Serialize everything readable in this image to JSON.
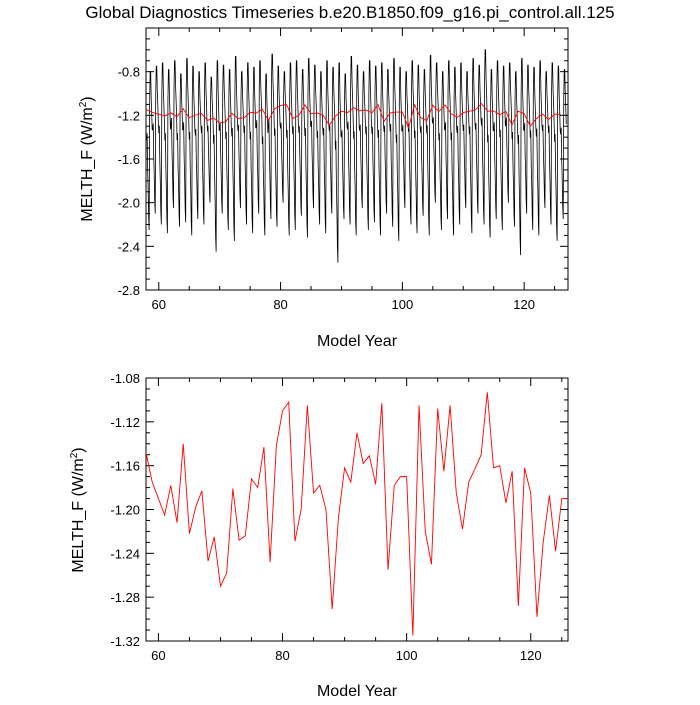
{
  "figure_title": "Global Diagnostics Timeseries b.e20.B1850.f09_g16.pi_control.all.125",
  "chart_data": [
    {
      "type": "line",
      "xlabel": "Model Year",
      "ylabel": "MELTH_F (W/m²)",
      "ylabel_main": "MELTH_F (W/m",
      "ylabel_sup": "2",
      "ylabel_tail": ")",
      "xlim": [
        57.9,
        127.2
      ],
      "ylim": [
        -2.8,
        -0.4
      ],
      "x_tick_labels": [
        "60",
        "80",
        "100",
        "120"
      ],
      "x_tick_values": [
        60,
        80,
        100,
        120
      ],
      "y_tick_labels": [
        "-2.8",
        "-2.4",
        "-2.0",
        "-1.6",
        "-1.2",
        "-0.8"
      ],
      "y_tick_values": [
        -2.8,
        -2.4,
        -2.0,
        -1.6,
        -1.2,
        -0.8
      ],
      "series": [
        {
          "kind": "monthly",
          "color": "#000000",
          "start_year": 58,
          "points_per_year": 12,
          "years": 69,
          "seasonal_cycle_offsets": [
            0.06,
            0.1,
            -0.2,
            -0.45,
            -0.8,
            -0.95,
            0.28,
            0.45,
            0.45,
            0.3,
            0.22,
            0.12
          ],
          "annual_peaks": [
            -0.8,
            -0.75,
            -0.72,
            -0.78,
            -0.7,
            -0.82,
            -0.68,
            -0.75,
            -0.8,
            -0.72,
            -0.85,
            -0.7,
            -0.74,
            -0.78,
            -0.66,
            -0.8,
            -0.72,
            -0.76,
            -0.7,
            -0.82,
            -0.64,
            -0.75,
            -0.8,
            -0.72,
            -0.7,
            -0.78,
            -0.68,
            -0.74,
            -0.8,
            -0.7,
            -0.76,
            -0.72,
            -0.82,
            -0.66,
            -0.74,
            -0.8,
            -0.7,
            -0.75,
            -0.72,
            -0.78,
            -0.68,
            -0.76,
            -0.8,
            -0.7,
            -0.74,
            -0.78,
            -0.65,
            -0.72,
            -0.8,
            -0.7,
            -0.76,
            -0.72,
            -0.8,
            -0.68,
            -0.74,
            -0.6,
            -0.78,
            -0.7,
            -0.75,
            -0.72,
            -0.8,
            -0.68,
            -0.74,
            -0.76,
            -0.7,
            -0.8,
            -0.72,
            -0.75,
            -0.78
          ],
          "annual_troughs": [
            -2.25,
            -2.1,
            -2.2,
            -2.28,
            -2.05,
            -2.22,
            -2.18,
            -2.3,
            -2.15,
            -2.2,
            -2.0,
            -2.45,
            -2.1,
            -2.25,
            -2.35,
            -2.05,
            -2.2,
            -2.28,
            -2.1,
            -2.3,
            -2.15,
            -2.22,
            -2.0,
            -2.3,
            -2.25,
            -2.12,
            -2.32,
            -2.05,
            -2.2,
            -2.28,
            -2.1,
            -2.55,
            -2.15,
            -2.2,
            -2.3,
            -2.05,
            -2.25,
            -2.18,
            -2.3,
            -2.1,
            -2.22,
            -2.35,
            -2.05,
            -2.2,
            -2.28,
            -2.12,
            -2.3,
            -2.0,
            -2.25,
            -2.15,
            -2.3,
            -2.2,
            -2.05,
            -2.28,
            -2.1,
            -2.2,
            -2.32,
            -2.15,
            -2.25,
            -2.0,
            -2.22,
            -2.48,
            -2.1,
            -2.25,
            -2.3,
            -2.05,
            -2.2,
            -2.35,
            -2.15
          ]
        },
        {
          "kind": "annual",
          "color": "#ff0000",
          "x": [
            58,
            59,
            60,
            61,
            62,
            63,
            64,
            65,
            66,
            67,
            68,
            69,
            70,
            71,
            72,
            73,
            74,
            75,
            76,
            77,
            78,
            79,
            80,
            81,
            82,
            83,
            84,
            85,
            86,
            87,
            88,
            89,
            90,
            91,
            92,
            93,
            94,
            95,
            96,
            97,
            98,
            99,
            100,
            101,
            102,
            103,
            104,
            105,
            106,
            107,
            108,
            109,
            110,
            111,
            112,
            113,
            114,
            115,
            116,
            117,
            118,
            119,
            120,
            121,
            122,
            123,
            124,
            125,
            126
          ],
          "y": [
            -1.148,
            -1.175,
            -1.19,
            -1.205,
            -1.178,
            -1.212,
            -1.14,
            -1.222,
            -1.198,
            -1.183,
            -1.247,
            -1.225,
            -1.27,
            -1.258,
            -1.181,
            -1.228,
            -1.224,
            -1.172,
            -1.18,
            -1.143,
            -1.248,
            -1.142,
            -1.11,
            -1.102,
            -1.229,
            -1.2,
            -1.105,
            -1.185,
            -1.178,
            -1.2,
            -1.291,
            -1.208,
            -1.162,
            -1.175,
            -1.13,
            -1.158,
            -1.151,
            -1.177,
            -1.103,
            -1.255,
            -1.178,
            -1.17,
            -1.17,
            -1.315,
            -1.105,
            -1.22,
            -1.25,
            -1.108,
            -1.165,
            -1.105,
            -1.185,
            -1.218,
            -1.175,
            -1.163,
            -1.15,
            -1.093,
            -1.162,
            -1.16,
            -1.194,
            -1.165,
            -1.288,
            -1.162,
            -1.185,
            -1.298,
            -1.23,
            -1.187,
            -1.238,
            -1.19,
            -1.19
          ]
        }
      ]
    },
    {
      "type": "line",
      "xlabel": "Model Year",
      "ylabel": "MELTH_F (W/m²)",
      "ylabel_main": "MELTH_F (W/m",
      "ylabel_sup": "2",
      "ylabel_tail": ")",
      "xlim": [
        58,
        126
      ],
      "ylim": [
        -1.32,
        -1.08
      ],
      "x_tick_labels": [
        "60",
        "80",
        "100",
        "120"
      ],
      "x_tick_values": [
        60,
        80,
        100,
        120
      ],
      "y_tick_labels": [
        "-1.32",
        "-1.28",
        "-1.24",
        "-1.20",
        "-1.16",
        "-1.12",
        "-1.08"
      ],
      "y_tick_values": [
        -1.32,
        -1.28,
        -1.24,
        -1.2,
        -1.16,
        -1.12,
        -1.08
      ],
      "series": [
        {
          "kind": "annual",
          "color": "#ff0000",
          "x": [
            58,
            59,
            60,
            61,
            62,
            63,
            64,
            65,
            66,
            67,
            68,
            69,
            70,
            71,
            72,
            73,
            74,
            75,
            76,
            77,
            78,
            79,
            80,
            81,
            82,
            83,
            84,
            85,
            86,
            87,
            88,
            89,
            90,
            91,
            92,
            93,
            94,
            95,
            96,
            97,
            98,
            99,
            100,
            101,
            102,
            103,
            104,
            105,
            106,
            107,
            108,
            109,
            110,
            111,
            112,
            113,
            114,
            115,
            116,
            117,
            118,
            119,
            120,
            121,
            122,
            123,
            124,
            125,
            126
          ],
          "y": [
            -1.148,
            -1.175,
            -1.19,
            -1.205,
            -1.178,
            -1.212,
            -1.14,
            -1.222,
            -1.198,
            -1.183,
            -1.247,
            -1.225,
            -1.27,
            -1.258,
            -1.181,
            -1.228,
            -1.224,
            -1.172,
            -1.18,
            -1.143,
            -1.248,
            -1.142,
            -1.11,
            -1.102,
            -1.229,
            -1.2,
            -1.105,
            -1.185,
            -1.178,
            -1.2,
            -1.291,
            -1.208,
            -1.162,
            -1.175,
            -1.13,
            -1.158,
            -1.151,
            -1.177,
            -1.103,
            -1.255,
            -1.178,
            -1.17,
            -1.17,
            -1.315,
            -1.105,
            -1.22,
            -1.25,
            -1.108,
            -1.165,
            -1.105,
            -1.185,
            -1.218,
            -1.175,
            -1.163,
            -1.15,
            -1.093,
            -1.162,
            -1.16,
            -1.194,
            -1.165,
            -1.288,
            -1.162,
            -1.185,
            -1.298,
            -1.23,
            -1.187,
            -1.238,
            -1.19,
            -1.19
          ]
        }
      ]
    }
  ]
}
